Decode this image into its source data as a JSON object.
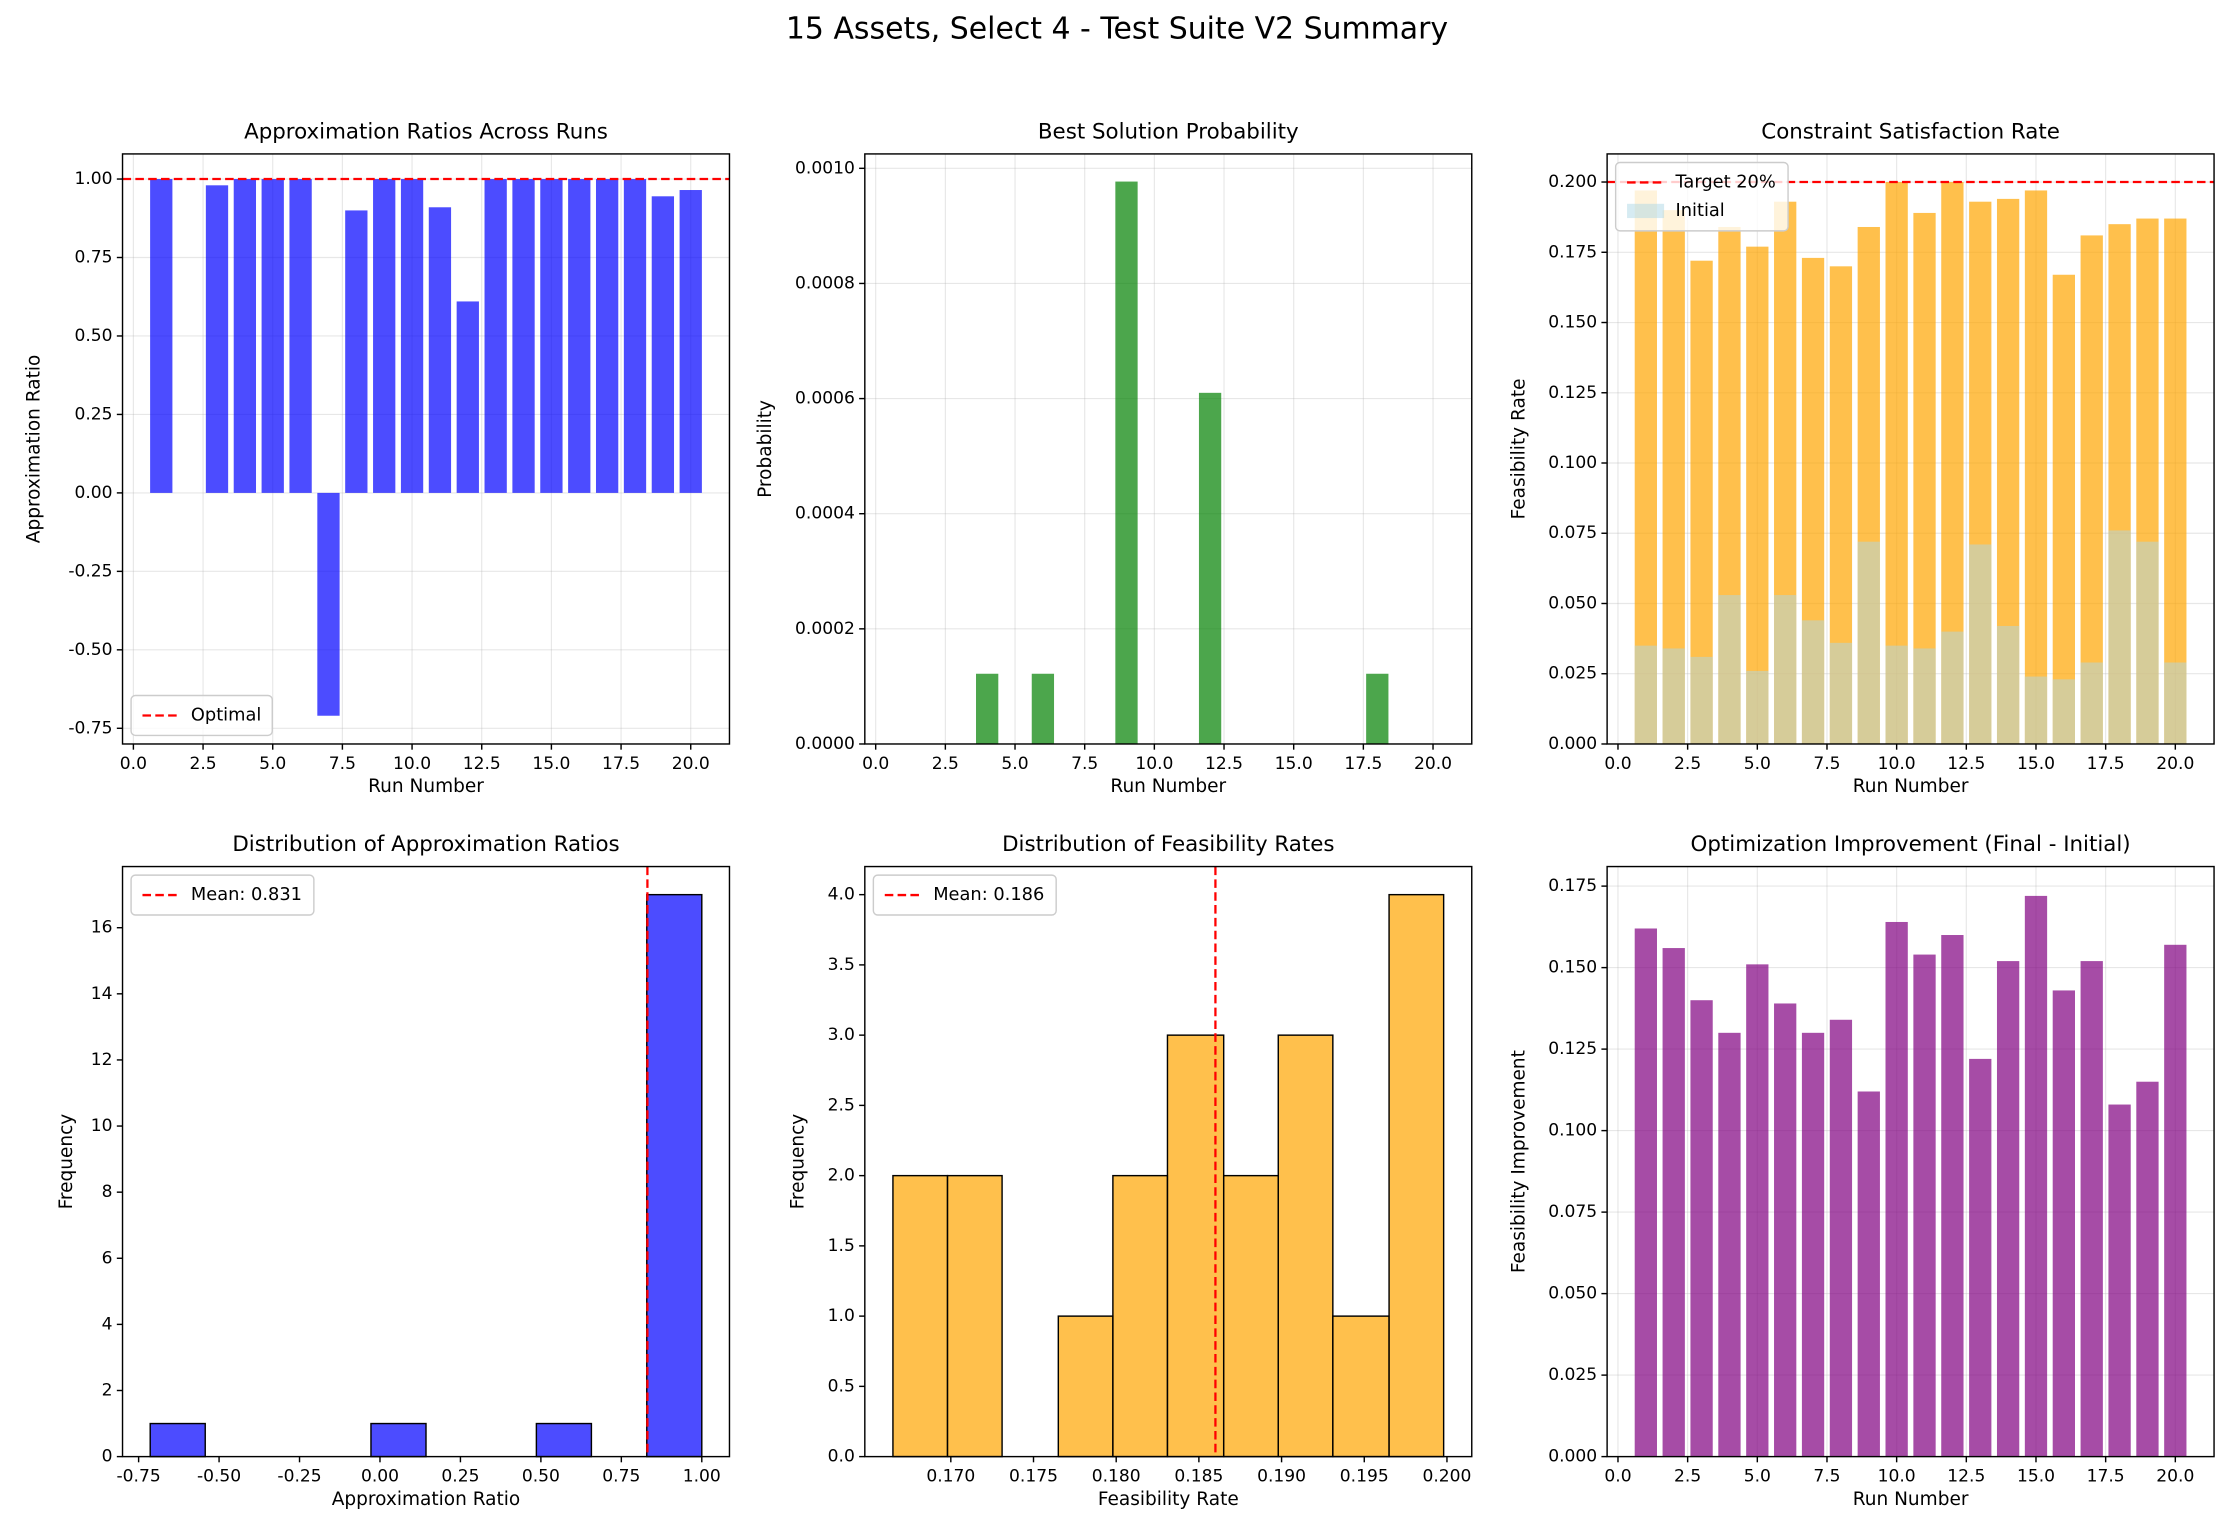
{
  "title": "15 Assets, Select 4 - Test Suite V2 Summary",
  "chart_data": [
    {
      "type": "bar",
      "title": "Approximation Ratios Across Runs",
      "xlabel": "Run Number",
      "ylabel": "Approximation Ratio",
      "x": [
        1,
        2,
        3,
        4,
        5,
        6,
        7,
        8,
        9,
        10,
        11,
        12,
        13,
        14,
        15,
        16,
        17,
        18,
        19,
        20
      ],
      "values": [
        1.0,
        0,
        0.98,
        1.0,
        1.0,
        1.0,
        -0.71,
        0.9,
        1.0,
        1.0,
        0.91,
        0.61,
        1.0,
        1.0,
        1.0,
        1.0,
        1.0,
        1.0,
        0.945,
        0.965
      ],
      "color": "#0000ff",
      "alpha": 0.7,
      "xlim": [
        -0.39,
        21.39
      ],
      "ylim": [
        -0.8,
        1.08
      ],
      "xticks": [
        {
          "value": 0,
          "label": "0.0"
        },
        2.5,
        {
          "value": 5,
          "label": "5.0"
        },
        7.5,
        {
          "value": 10,
          "label": "10.0"
        },
        12.5,
        {
          "value": 15,
          "label": "15.0"
        },
        17.5,
        {
          "value": 20,
          "label": "20.0"
        }
      ],
      "yticks": [
        -0.75,
        {
          "value": -0.5,
          "label": "-0.50"
        },
        -0.25,
        {
          "value": 0,
          "label": "0.00"
        },
        0.25,
        {
          "value": 0.5,
          "label": "0.50"
        },
        0.75,
        {
          "value": 1,
          "label": "1.00"
        }
      ],
      "grid": true,
      "hline": 1.0,
      "hline_label": "Optimal",
      "legend": "lower left"
    },
    {
      "type": "bar",
      "title": "Best Solution Probability",
      "xlabel": "Run Number",
      "ylabel": "Probability",
      "x": [
        1,
        2,
        3,
        4,
        5,
        6,
        7,
        8,
        9,
        10,
        11,
        12,
        13,
        14,
        15,
        16,
        17,
        18,
        19,
        20
      ],
      "values": [
        0,
        0,
        0,
        0.000122,
        0,
        0.000122,
        0,
        0,
        0.000977,
        0,
        0,
        0.00061,
        0,
        0,
        0,
        0,
        0,
        0.000122,
        0,
        0
      ],
      "color": "green",
      "alpha": 0.7,
      "xlim": [
        -0.39,
        21.39
      ],
      "ylim": [
        0,
        0.001025
      ],
      "xticks": [
        {
          "value": 0,
          "label": "0.0"
        },
        2.5,
        {
          "value": 5,
          "label": "5.0"
        },
        7.5,
        {
          "value": 10,
          "label": "10.0"
        },
        12.5,
        {
          "value": 15,
          "label": "15.0"
        },
        17.5,
        {
          "value": 20,
          "label": "20.0"
        }
      ],
      "yticks": [
        {
          "value": 0,
          "label": "0.0000"
        },
        0.0002,
        0.0004,
        0.0006,
        0.0008,
        {
          "value": 0.001,
          "label": "0.0010"
        }
      ],
      "grid": true
    },
    {
      "type": "bar",
      "title": "Constraint Satisfaction Rate",
      "xlabel": "Run Number",
      "ylabel": "Feasibility Rate",
      "x": [
        1,
        2,
        3,
        4,
        5,
        6,
        7,
        8,
        9,
        10,
        11,
        12,
        13,
        14,
        15,
        16,
        17,
        18,
        19,
        20
      ],
      "series": [
        {
          "color": "orange",
          "alpha": 0.7,
          "values": [
            0.197,
            0.19,
            0.172,
            0.184,
            0.177,
            0.193,
            0.173,
            0.17,
            0.184,
            0.2,
            0.189,
            0.2,
            0.193,
            0.194,
            0.197,
            0.167,
            0.181,
            0.185,
            0.187,
            0.187
          ]
        },
        {
          "name": "Initial",
          "color": "lightblue",
          "alpha": 0.5,
          "values": [
            0.035,
            0.034,
            0.031,
            0.053,
            0.026,
            0.053,
            0.044,
            0.036,
            0.072,
            0.035,
            0.034,
            0.04,
            0.071,
            0.042,
            0.024,
            0.023,
            0.029,
            0.076,
            0.072,
            0.029
          ]
        }
      ],
      "xlim": [
        -0.39,
        21.39
      ],
      "ylim": [
        0,
        0.21
      ],
      "xticks": [
        {
          "value": 0,
          "label": "0.0"
        },
        2.5,
        {
          "value": 5,
          "label": "5.0"
        },
        7.5,
        {
          "value": 10,
          "label": "10.0"
        },
        12.5,
        {
          "value": 15,
          "label": "15.0"
        },
        17.5,
        {
          "value": 20,
          "label": "20.0"
        }
      ],
      "yticks": [
        {
          "value": 0,
          "label": "0.000"
        },
        0.025,
        {
          "value": 0.05,
          "label": "0.050"
        },
        0.075,
        {
          "value": 0.1,
          "label": "0.100"
        },
        0.125,
        {
          "value": 0.15,
          "label": "0.150"
        },
        0.175,
        {
          "value": 0.2,
          "label": "0.200"
        }
      ],
      "grid": true,
      "hline": 0.2,
      "hline_label": "Target 20%",
      "legend": "upper left"
    },
    {
      "type": "histogram",
      "title": "Distribution of Approximation Ratios",
      "xlabel": "Approximation Ratio",
      "ylabel": "Frequency",
      "bins": [
        -0.714,
        -0.543,
        -0.371,
        -0.2,
        -0.028,
        0.143,
        0.314,
        0.486,
        0.657,
        0.829,
        1.0
      ],
      "values": [
        1,
        0,
        0,
        0,
        1,
        0,
        0,
        1,
        0,
        17
      ],
      "color": "#0000ff",
      "alpha": 0.7,
      "edgecolor": "black",
      "xlim": [
        -0.8,
        1.086
      ],
      "ylim": [
        0,
        17.85
      ],
      "xticks": [
        -0.75,
        {
          "value": -0.5,
          "label": "-0.50"
        },
        -0.25,
        {
          "value": 0,
          "label": "0.00"
        },
        0.25,
        {
          "value": 0.5,
          "label": "0.50"
        },
        0.75,
        {
          "value": 1,
          "label": "1.00"
        }
      ],
      "yticks": [
        0,
        2,
        4,
        6,
        8,
        10,
        12,
        14,
        16
      ],
      "grid": false,
      "vline": 0.831,
      "vline_label": "Mean: 0.831",
      "legend": "upper left"
    },
    {
      "type": "histogram",
      "title": "Distribution of Feasibility Rates",
      "xlabel": "Feasibility Rate",
      "ylabel": "Frequency",
      "bins": [
        0.1665,
        0.1698,
        0.1731,
        0.1765,
        0.1798,
        0.1831,
        0.1865,
        0.1898,
        0.1931,
        0.1965,
        0.1998
      ],
      "values": [
        2,
        2,
        0,
        1,
        2,
        3,
        2,
        3,
        1,
        4
      ],
      "color": "orange",
      "alpha": 0.7,
      "edgecolor": "black",
      "xlim": [
        0.1648,
        0.2015
      ],
      "ylim": [
        0,
        4.2
      ],
      "xticks": [
        {
          "value": 0.17,
          "label": "0.170"
        },
        0.175,
        {
          "value": 0.18,
          "label": "0.180"
        },
        0.185,
        {
          "value": 0.19,
          "label": "0.190"
        },
        0.195,
        {
          "value": 0.2,
          "label": "0.200"
        }
      ],
      "yticks": [
        {
          "value": 0,
          "label": "0.0"
        },
        0.5,
        {
          "value": 1,
          "label": "1.0"
        },
        1.5,
        {
          "value": 2,
          "label": "2.0"
        },
        2.5,
        {
          "value": 3,
          "label": "3.0"
        },
        3.5,
        {
          "value": 4,
          "label": "4.0"
        }
      ],
      "grid": false,
      "vline": 0.186,
      "vline_label": "Mean: 0.186",
      "legend": "upper left"
    },
    {
      "type": "bar",
      "title": "Optimization Improvement (Final - Initial)",
      "xlabel": "Run Number",
      "ylabel": "Feasibility Improvement",
      "x": [
        1,
        2,
        3,
        4,
        5,
        6,
        7,
        8,
        9,
        10,
        11,
        12,
        13,
        14,
        15,
        16,
        17,
        18,
        19,
        20
      ],
      "values": [
        0.162,
        0.156,
        0.14,
        0.13,
        0.151,
        0.139,
        0.13,
        0.134,
        0.112,
        0.164,
        0.154,
        0.16,
        0.122,
        0.152,
        0.172,
        0.143,
        0.152,
        0.108,
        0.115,
        0.157
      ],
      "color": "purple",
      "alpha": 0.7,
      "xlim": [
        -0.39,
        21.39
      ],
      "ylim": [
        0,
        0.181
      ],
      "xticks": [
        {
          "value": 0,
          "label": "0.0"
        },
        2.5,
        {
          "value": 5,
          "label": "5.0"
        },
        7.5,
        {
          "value": 10,
          "label": "10.0"
        },
        12.5,
        {
          "value": 15,
          "label": "15.0"
        },
        17.5,
        {
          "value": 20,
          "label": "20.0"
        }
      ],
      "yticks": [
        {
          "value": 0,
          "label": "0.000"
        },
        0.025,
        {
          "value": 0.05,
          "label": "0.050"
        },
        0.075,
        {
          "value": 0.1,
          "label": "0.100"
        },
        0.125,
        {
          "value": 0.15,
          "label": "0.150"
        },
        0.175
      ],
      "grid": true
    }
  ]
}
